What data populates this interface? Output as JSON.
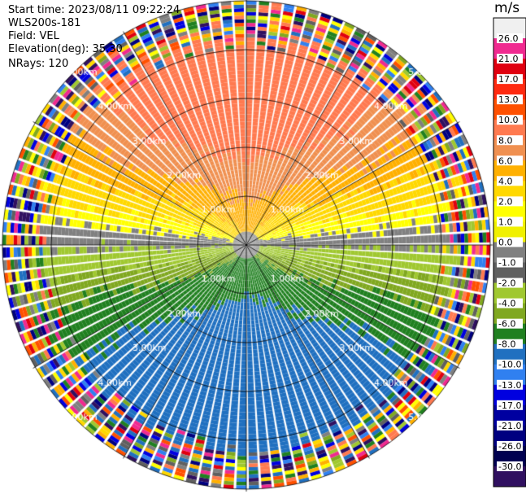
{
  "header": {
    "start_time": "Start time: 2023/08/11 09:22:24",
    "instrument": "WLS200s-181",
    "field": "Field: VEL",
    "elevation": "Elevation(deg): 35.30",
    "nrays": "NRays: 120"
  },
  "colorbar": {
    "unit": "m/s",
    "labels": [
      "26.0",
      "21.0",
      "17.0",
      "13.0",
      "10.0",
      "8.0",
      "6.0",
      "4.0",
      "2.0",
      "1.0",
      "0.0",
      "-1.0",
      "-2.0",
      "-4.0",
      "-6.0",
      "-8.0",
      "-10.0",
      "-13.0",
      "-17.0",
      "-21.0",
      "-26.0",
      "-30.0"
    ],
    "colors": [
      "#f0f0f0",
      "#f02a90",
      "#e00010",
      "#ff2a10",
      "#ff5000",
      "#ff7a50",
      "#f09050",
      "#ffb000",
      "#ffd800",
      "#ffff00",
      "#f0f000",
      "#808080",
      "#606060",
      "#a0c830",
      "#80a820",
      "#208020",
      "#2070c0",
      "#3080f0",
      "#0000e0",
      "#0000a0",
      "#000080",
      "#000050",
      "#301060"
    ]
  },
  "chart_data": {
    "type": "ppi-polar",
    "field": "VEL",
    "units": "m/s",
    "nrays": 120,
    "elevation_deg": 35.3,
    "ring_labels_km": [
      "1.00km",
      "2.00km",
      "3.00km",
      "4.00km",
      "5.00km"
    ],
    "ring_radii_km": [
      1.0,
      2.0,
      3.0,
      4.0,
      5.0
    ],
    "max_range_km": 5.0,
    "azimuth_spokes_deg": [
      0,
      30,
      60,
      90,
      120,
      150,
      180,
      210,
      240,
      270,
      300,
      330
    ],
    "velocity_pattern": {
      "north_sector": "6.0 to 8.0",
      "south_sector": "-6.0 to -10.0",
      "east_west_band": "0.0 to -2.0",
      "far_range": "noise"
    }
  }
}
